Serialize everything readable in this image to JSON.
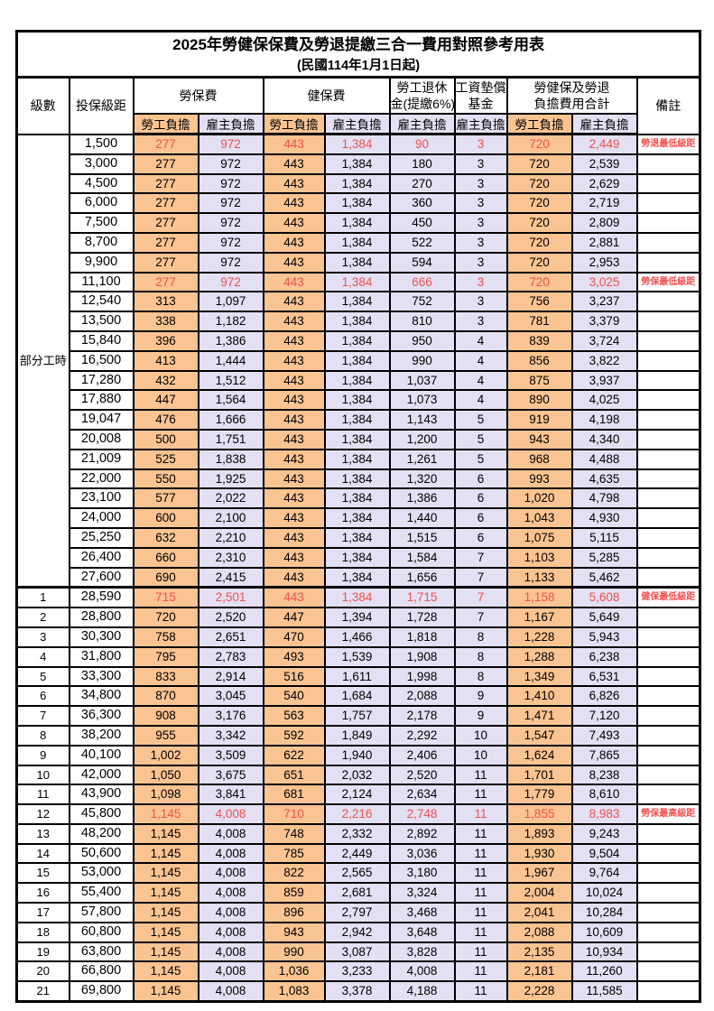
{
  "title": "2025年勞健保保費及勞退提繳三合一費用對照參考用表",
  "subtitle": "(民國114年1月1日起)",
  "header": {
    "level": "級數",
    "bracket": "投保級距",
    "labor_insurance": "勞保費",
    "health_insurance": "健保費",
    "pension_line1": "勞工退休",
    "pension_line2": "金(提繳6%)",
    "wage_fund_line1": "工資墊償",
    "wage_fund_line2": "基金",
    "total_line1": "勞健保及勞退",
    "total_line2": "負擔費用合計",
    "remarks": "備註",
    "employee": "勞工負擔",
    "employer": "雇主負擔"
  },
  "colors": {
    "employee_col_bg": "#FAC492",
    "employer_col_bg": "#E2E0F2",
    "highlight_red": "#F0514F"
  },
  "part_time_label": "部分工時",
  "part_time_rows": [
    {
      "bracket": "1,500",
      "values": [
        "277",
        "972",
        "443",
        "1,384",
        "90",
        "3",
        "720",
        "2,449"
      ],
      "remark": "勞退最低級距",
      "highlight": true
    },
    {
      "bracket": "3,000",
      "values": [
        "277",
        "972",
        "443",
        "1,384",
        "180",
        "3",
        "720",
        "2,539"
      ],
      "remark": "",
      "highlight": false
    },
    {
      "bracket": "4,500",
      "values": [
        "277",
        "972",
        "443",
        "1,384",
        "270",
        "3",
        "720",
        "2,629"
      ],
      "remark": "",
      "highlight": false
    },
    {
      "bracket": "6,000",
      "values": [
        "277",
        "972",
        "443",
        "1,384",
        "360",
        "3",
        "720",
        "2,719"
      ],
      "remark": "",
      "highlight": false
    },
    {
      "bracket": "7,500",
      "values": [
        "277",
        "972",
        "443",
        "1,384",
        "450",
        "3",
        "720",
        "2,809"
      ],
      "remark": "",
      "highlight": false
    },
    {
      "bracket": "8,700",
      "values": [
        "277",
        "972",
        "443",
        "1,384",
        "522",
        "3",
        "720",
        "2,881"
      ],
      "remark": "",
      "highlight": false
    },
    {
      "bracket": "9,900",
      "values": [
        "277",
        "972",
        "443",
        "1,384",
        "594",
        "3",
        "720",
        "2,953"
      ],
      "remark": "",
      "highlight": false
    },
    {
      "bracket": "11,100",
      "values": [
        "277",
        "972",
        "443",
        "1,384",
        "666",
        "3",
        "720",
        "3,025"
      ],
      "remark": "勞保最低級距",
      "highlight": true
    },
    {
      "bracket": "12,540",
      "values": [
        "313",
        "1,097",
        "443",
        "1,384",
        "752",
        "3",
        "756",
        "3,237"
      ],
      "remark": "",
      "highlight": false
    },
    {
      "bracket": "13,500",
      "values": [
        "338",
        "1,182",
        "443",
        "1,384",
        "810",
        "3",
        "781",
        "3,379"
      ],
      "remark": "",
      "highlight": false
    },
    {
      "bracket": "15,840",
      "values": [
        "396",
        "1,386",
        "443",
        "1,384",
        "950",
        "4",
        "839",
        "3,724"
      ],
      "remark": "",
      "highlight": false
    },
    {
      "bracket": "16,500",
      "values": [
        "413",
        "1,444",
        "443",
        "1,384",
        "990",
        "4",
        "856",
        "3,822"
      ],
      "remark": "",
      "highlight": false
    },
    {
      "bracket": "17,280",
      "values": [
        "432",
        "1,512",
        "443",
        "1,384",
        "1,037",
        "4",
        "875",
        "3,937"
      ],
      "remark": "",
      "highlight": false
    },
    {
      "bracket": "17,880",
      "values": [
        "447",
        "1,564",
        "443",
        "1,384",
        "1,073",
        "4",
        "890",
        "4,025"
      ],
      "remark": "",
      "highlight": false
    },
    {
      "bracket": "19,047",
      "values": [
        "476",
        "1,666",
        "443",
        "1,384",
        "1,143",
        "5",
        "919",
        "4,198"
      ],
      "remark": "",
      "highlight": false
    },
    {
      "bracket": "20,008",
      "values": [
        "500",
        "1,751",
        "443",
        "1,384",
        "1,200",
        "5",
        "943",
        "4,340"
      ],
      "remark": "",
      "highlight": false
    },
    {
      "bracket": "21,009",
      "values": [
        "525",
        "1,838",
        "443",
        "1,384",
        "1,261",
        "5",
        "968",
        "4,488"
      ],
      "remark": "",
      "highlight": false
    },
    {
      "bracket": "22,000",
      "values": [
        "550",
        "1,925",
        "443",
        "1,384",
        "1,320",
        "6",
        "993",
        "4,635"
      ],
      "remark": "",
      "highlight": false
    },
    {
      "bracket": "23,100",
      "values": [
        "577",
        "2,022",
        "443",
        "1,384",
        "1,386",
        "6",
        "1,020",
        "4,798"
      ],
      "remark": "",
      "highlight": false
    },
    {
      "bracket": "24,000",
      "values": [
        "600",
        "2,100",
        "443",
        "1,384",
        "1,440",
        "6",
        "1,043",
        "4,930"
      ],
      "remark": "",
      "highlight": false
    },
    {
      "bracket": "25,250",
      "values": [
        "632",
        "2,210",
        "443",
        "1,384",
        "1,515",
        "6",
        "1,075",
        "5,115"
      ],
      "remark": "",
      "highlight": false
    },
    {
      "bracket": "26,400",
      "values": [
        "660",
        "2,310",
        "443",
        "1,384",
        "1,584",
        "7",
        "1,103",
        "5,285"
      ],
      "remark": "",
      "highlight": false
    },
    {
      "bracket": "27,600",
      "values": [
        "690",
        "2,415",
        "443",
        "1,384",
        "1,656",
        "7",
        "1,133",
        "5,462"
      ],
      "remark": "",
      "highlight": false
    }
  ],
  "numbered_rows": [
    {
      "level": "1",
      "bracket": "28,590",
      "values": [
        "715",
        "2,501",
        "443",
        "1,384",
        "1,715",
        "7",
        "1,158",
        "5,608"
      ],
      "remark": "健保最低級距",
      "highlight": true
    },
    {
      "level": "2",
      "bracket": "28,800",
      "values": [
        "720",
        "2,520",
        "447",
        "1,394",
        "1,728",
        "7",
        "1,167",
        "5,649"
      ],
      "remark": "",
      "highlight": false
    },
    {
      "level": "3",
      "bracket": "30,300",
      "values": [
        "758",
        "2,651",
        "470",
        "1,466",
        "1,818",
        "8",
        "1,228",
        "5,943"
      ],
      "remark": "",
      "highlight": false
    },
    {
      "level": "4",
      "bracket": "31,800",
      "values": [
        "795",
        "2,783",
        "493",
        "1,539",
        "1,908",
        "8",
        "1,288",
        "6,238"
      ],
      "remark": "",
      "highlight": false
    },
    {
      "level": "5",
      "bracket": "33,300",
      "values": [
        "833",
        "2,914",
        "516",
        "1,611",
        "1,998",
        "8",
        "1,349",
        "6,531"
      ],
      "remark": "",
      "highlight": false
    },
    {
      "level": "6",
      "bracket": "34,800",
      "values": [
        "870",
        "3,045",
        "540",
        "1,684",
        "2,088",
        "9",
        "1,410",
        "6,826"
      ],
      "remark": "",
      "highlight": false
    },
    {
      "level": "7",
      "bracket": "36,300",
      "values": [
        "908",
        "3,176",
        "563",
        "1,757",
        "2,178",
        "9",
        "1,471",
        "7,120"
      ],
      "remark": "",
      "highlight": false
    },
    {
      "level": "8",
      "bracket": "38,200",
      "values": [
        "955",
        "3,342",
        "592",
        "1,849",
        "2,292",
        "10",
        "1,547",
        "7,493"
      ],
      "remark": "",
      "highlight": false
    },
    {
      "level": "9",
      "bracket": "40,100",
      "values": [
        "1,002",
        "3,509",
        "622",
        "1,940",
        "2,406",
        "10",
        "1,624",
        "7,865"
      ],
      "remark": "",
      "highlight": false
    },
    {
      "level": "10",
      "bracket": "42,000",
      "values": [
        "1,050",
        "3,675",
        "651",
        "2,032",
        "2,520",
        "11",
        "1,701",
        "8,238"
      ],
      "remark": "",
      "highlight": false
    },
    {
      "level": "11",
      "bracket": "43,900",
      "values": [
        "1,098",
        "3,841",
        "681",
        "2,124",
        "2,634",
        "11",
        "1,779",
        "8,610"
      ],
      "remark": "",
      "highlight": false
    },
    {
      "level": "12",
      "bracket": "45,800",
      "values": [
        "1,145",
        "4,008",
        "710",
        "2,216",
        "2,748",
        "11",
        "1,855",
        "8,983"
      ],
      "remark": "勞保最高級距",
      "highlight": true
    },
    {
      "level": "13",
      "bracket": "48,200",
      "values": [
        "1,145",
        "4,008",
        "748",
        "2,332",
        "2,892",
        "11",
        "1,893",
        "9,243"
      ],
      "remark": "",
      "highlight": false
    },
    {
      "level": "14",
      "bracket": "50,600",
      "values": [
        "1,145",
        "4,008",
        "785",
        "2,449",
        "3,036",
        "11",
        "1,930",
        "9,504"
      ],
      "remark": "",
      "highlight": false
    },
    {
      "level": "15",
      "bracket": "53,000",
      "values": [
        "1,145",
        "4,008",
        "822",
        "2,565",
        "3,180",
        "11",
        "1,967",
        "9,764"
      ],
      "remark": "",
      "highlight": false
    },
    {
      "level": "16",
      "bracket": "55,400",
      "values": [
        "1,145",
        "4,008",
        "859",
        "2,681",
        "3,324",
        "11",
        "2,004",
        "10,024"
      ],
      "remark": "",
      "highlight": false
    },
    {
      "level": "17",
      "bracket": "57,800",
      "values": [
        "1,145",
        "4,008",
        "896",
        "2,797",
        "3,468",
        "11",
        "2,041",
        "10,284"
      ],
      "remark": "",
      "highlight": false
    },
    {
      "level": "18",
      "bracket": "60,800",
      "values": [
        "1,145",
        "4,008",
        "943",
        "2,942",
        "3,648",
        "11",
        "2,088",
        "10,609"
      ],
      "remark": "",
      "highlight": false
    },
    {
      "level": "19",
      "bracket": "63,800",
      "values": [
        "1,145",
        "4,008",
        "990",
        "3,087",
        "3,828",
        "11",
        "2,135",
        "10,934"
      ],
      "remark": "",
      "highlight": false
    },
    {
      "level": "20",
      "bracket": "66,800",
      "values": [
        "1,145",
        "4,008",
        "1,036",
        "3,233",
        "4,008",
        "11",
        "2,181",
        "11,260"
      ],
      "remark": "",
      "highlight": false
    },
    {
      "level": "21",
      "bracket": "69,800",
      "values": [
        "1,145",
        "4,008",
        "1,083",
        "3,378",
        "4,188",
        "11",
        "2,228",
        "11,585"
      ],
      "remark": "",
      "highlight": false
    }
  ]
}
